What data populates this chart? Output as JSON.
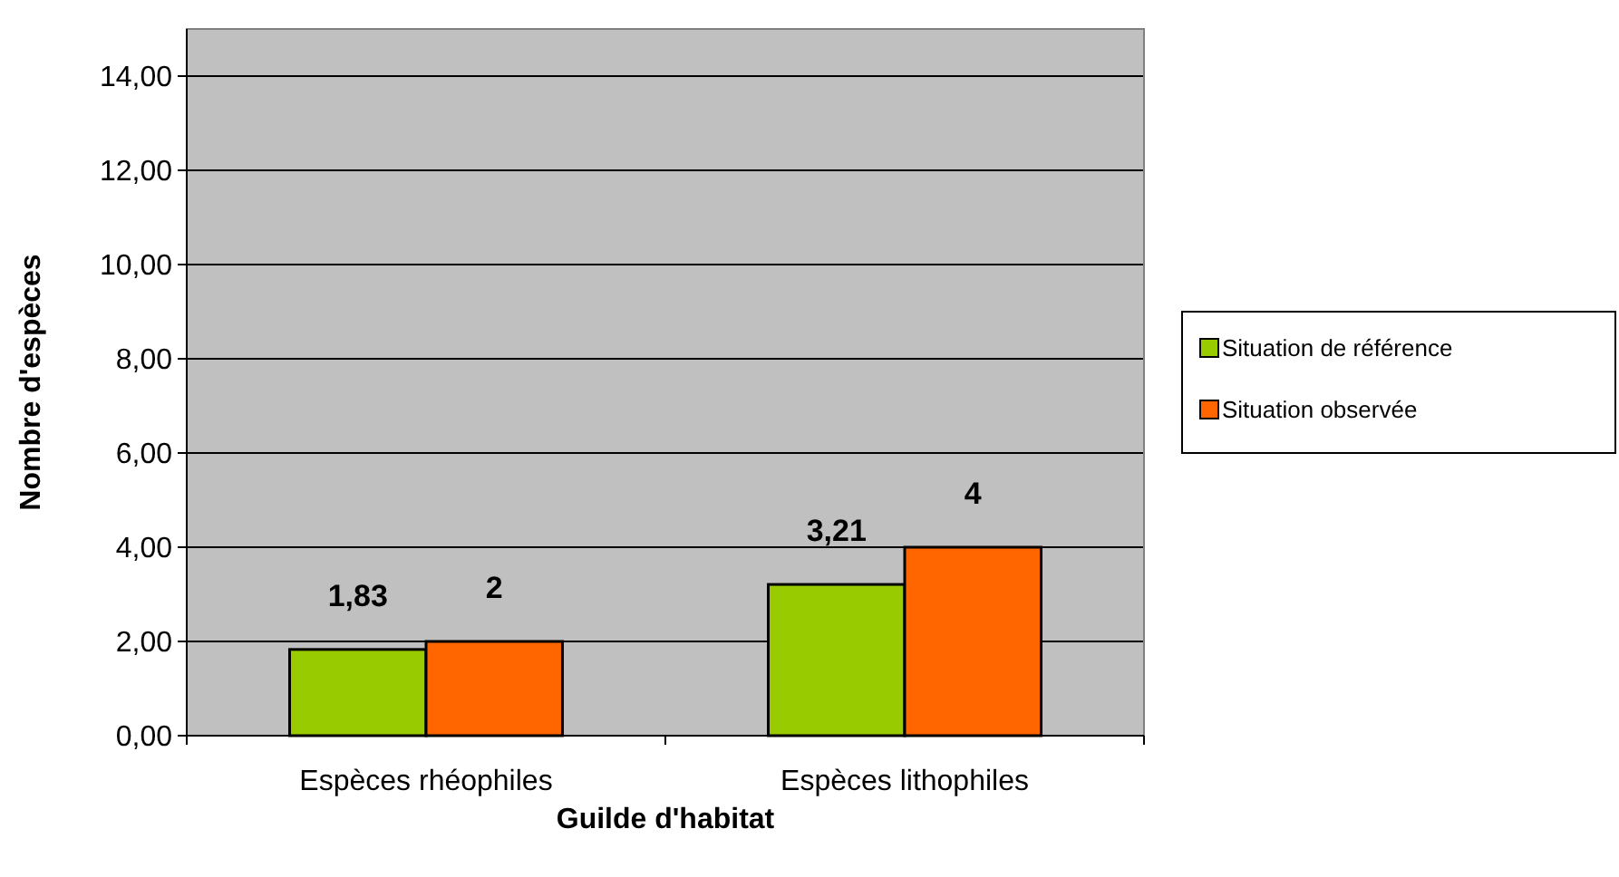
{
  "chart_data": {
    "type": "bar",
    "xlabel": "Guilde d'habitat",
    "ylabel": "Nombre d'espèces",
    "categories": [
      "Espèces rhéophiles",
      "Espèces lithophiles"
    ],
    "series": [
      {
        "name": "Situation de référence",
        "color": "#99cc00",
        "values": [
          1.83,
          3.21
        ],
        "value_labels": [
          "1,83",
          "3,21"
        ]
      },
      {
        "name": "Situation observée",
        "color": "#ff6600",
        "values": [
          2,
          4
        ],
        "value_labels": [
          "2",
          "4"
        ]
      }
    ],
    "ylim": [
      0,
      15
    ],
    "yticks": [
      {
        "value": 0,
        "label": "0,00"
      },
      {
        "value": 2,
        "label": "2,00"
      },
      {
        "value": 4,
        "label": "4,00"
      },
      {
        "value": 6,
        "label": "6,00"
      },
      {
        "value": 8,
        "label": "8,00"
      },
      {
        "value": 10,
        "label": "10,00"
      },
      {
        "value": 12,
        "label": "12,00"
      },
      {
        "value": 14,
        "label": "14,00"
      }
    ],
    "grid": "y",
    "legend": "right"
  }
}
